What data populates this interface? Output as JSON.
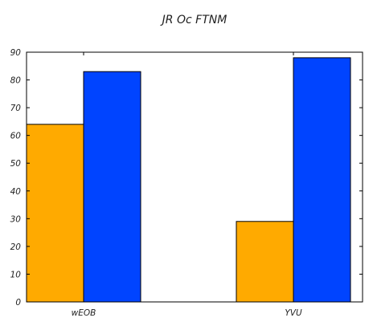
{
  "chart_data": {
    "type": "bar",
    "title": "JR  Oc   FTNM",
    "xlabel": "",
    "ylabel": "",
    "categories": [
      "wEOB",
      "YVU"
    ],
    "series": [
      {
        "values": [
          64,
          29
        ],
        "color": "#ffaa00"
      },
      {
        "values": [
          83,
          88
        ],
        "color": "#0044ff"
      }
    ],
    "ylim": [
      0,
      90
    ],
    "yticks": [
      "0",
      "10",
      "20",
      "30",
      "40",
      "50",
      "60",
      "70",
      "80",
      "90"
    ],
    "grid": false,
    "legend": "none"
  }
}
